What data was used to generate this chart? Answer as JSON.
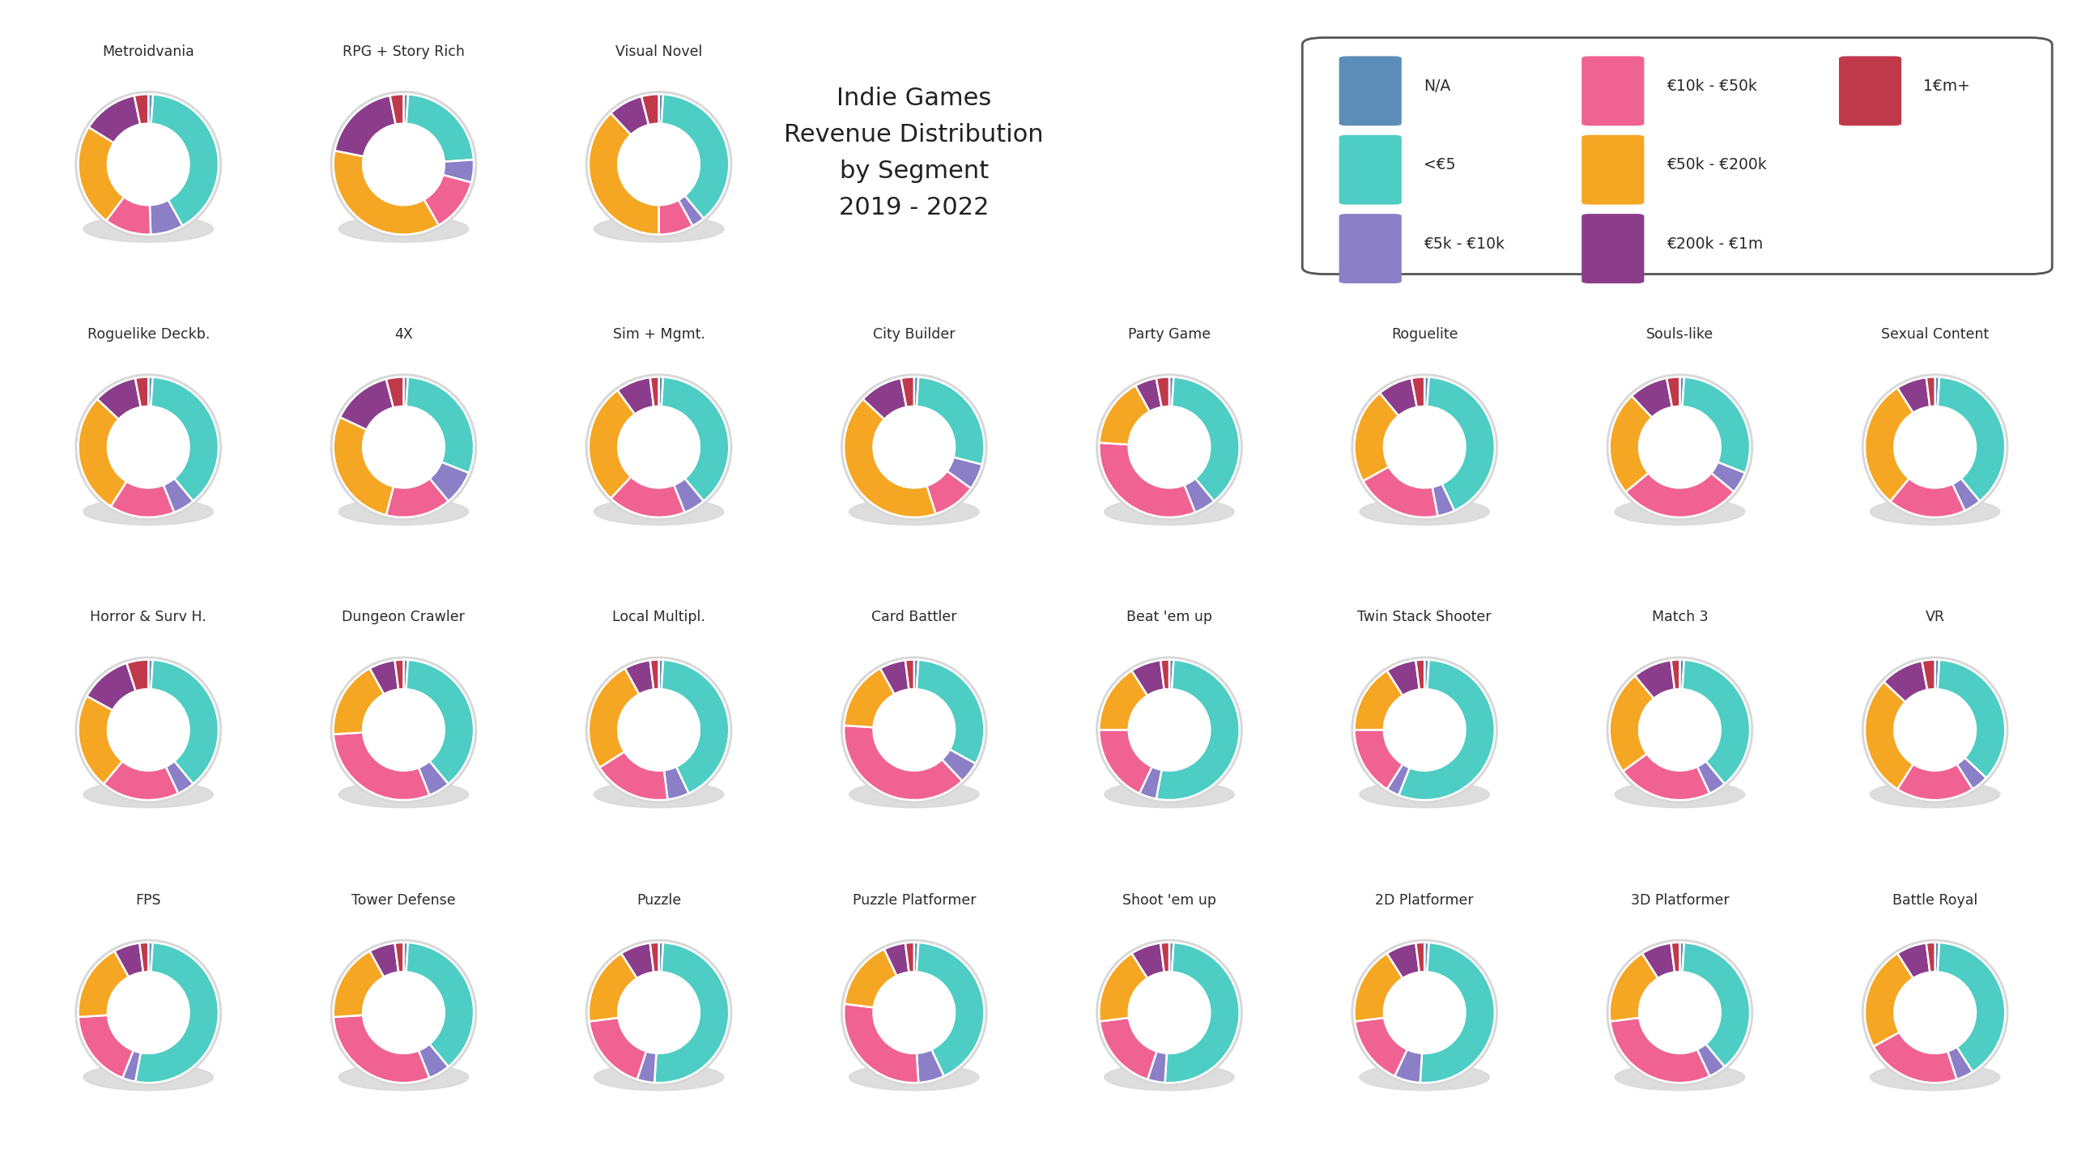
{
  "title": "Indie Games\nRevenue Distribution\nby Segment\n2019 - 2022",
  "background_color": "#ffffff",
  "colors": {
    "NA": "#5b8db8",
    "lt5": "#4ecdc4",
    "5k_10k": "#8b7fc7",
    "10k_50k": "#f06292",
    "50k_200k": "#f5a623",
    "200k_1m": "#8b3d8b",
    "1mp": "#c0394b"
  },
  "shadow_color": "#d8d8d8",
  "wedge_edge_color": "#ffffff",
  "segments": [
    {
      "name": "Metroidvania",
      "values": [
        1,
        38,
        7,
        10,
        22,
        12,
        3
      ]
    },
    {
      "name": "RPG + Story Rich",
      "values": [
        1,
        22,
        5,
        12,
        35,
        18,
        3
      ]
    },
    {
      "name": "Visual Novel",
      "values": [
        1,
        38,
        3,
        8,
        38,
        8,
        4
      ]
    },
    {
      "name": "Roguelike Deckb.",
      "values": [
        1,
        38,
        5,
        15,
        28,
        10,
        3
      ]
    },
    {
      "name": "4X",
      "values": [
        1,
        30,
        8,
        15,
        28,
        14,
        4
      ]
    },
    {
      "name": "Sim + Mgmt.",
      "values": [
        1,
        38,
        5,
        18,
        28,
        8,
        2
      ]
    },
    {
      "name": "City Builder",
      "values": [
        1,
        28,
        6,
        10,
        42,
        10,
        3
      ]
    },
    {
      "name": "Party Game",
      "values": [
        1,
        38,
        5,
        32,
        16,
        5,
        3
      ]
    },
    {
      "name": "Roguelite",
      "values": [
        1,
        42,
        4,
        20,
        22,
        8,
        3
      ]
    },
    {
      "name": "Souls-like",
      "values": [
        1,
        30,
        5,
        28,
        24,
        9,
        3
      ]
    },
    {
      "name": "Sexual Content",
      "values": [
        1,
        38,
        4,
        18,
        30,
        7,
        2
      ]
    },
    {
      "name": "Horror & Surv H.",
      "values": [
        1,
        38,
        4,
        18,
        22,
        12,
        5
      ]
    },
    {
      "name": "Dungeon Crawler",
      "values": [
        1,
        38,
        5,
        30,
        18,
        6,
        2
      ]
    },
    {
      "name": "Local Multipl.",
      "values": [
        1,
        42,
        5,
        18,
        26,
        6,
        2
      ]
    },
    {
      "name": "Card Battler",
      "values": [
        1,
        32,
        5,
        38,
        16,
        6,
        2
      ]
    },
    {
      "name": "Beat 'em up",
      "values": [
        1,
        52,
        4,
        18,
        16,
        7,
        2
      ]
    },
    {
      "name": "Twin Stack Shooter",
      "values": [
        1,
        55,
        3,
        16,
        16,
        7,
        2
      ]
    },
    {
      "name": "Match 3",
      "values": [
        1,
        38,
        4,
        22,
        24,
        9,
        2
      ]
    },
    {
      "name": "VR",
      "values": [
        1,
        36,
        4,
        18,
        28,
        10,
        3
      ]
    },
    {
      "name": "FPS",
      "values": [
        1,
        52,
        3,
        18,
        18,
        6,
        2
      ]
    },
    {
      "name": "Tower Defense",
      "values": [
        1,
        38,
        5,
        30,
        18,
        6,
        2
      ]
    },
    {
      "name": "Puzzle",
      "values": [
        1,
        50,
        4,
        18,
        18,
        7,
        2
      ]
    },
    {
      "name": "Puzzle Platformer",
      "values": [
        1,
        42,
        6,
        28,
        16,
        5,
        2
      ]
    },
    {
      "name": "Shoot 'em up",
      "values": [
        1,
        50,
        4,
        18,
        18,
        7,
        2
      ]
    },
    {
      "name": "2D Platformer",
      "values": [
        1,
        50,
        6,
        16,
        18,
        7,
        2
      ]
    },
    {
      "name": "3D Platformer",
      "values": [
        1,
        38,
        4,
        30,
        18,
        7,
        2
      ]
    },
    {
      "name": "Battle Royal",
      "values": [
        1,
        40,
        4,
        22,
        24,
        7,
        2
      ]
    }
  ]
}
